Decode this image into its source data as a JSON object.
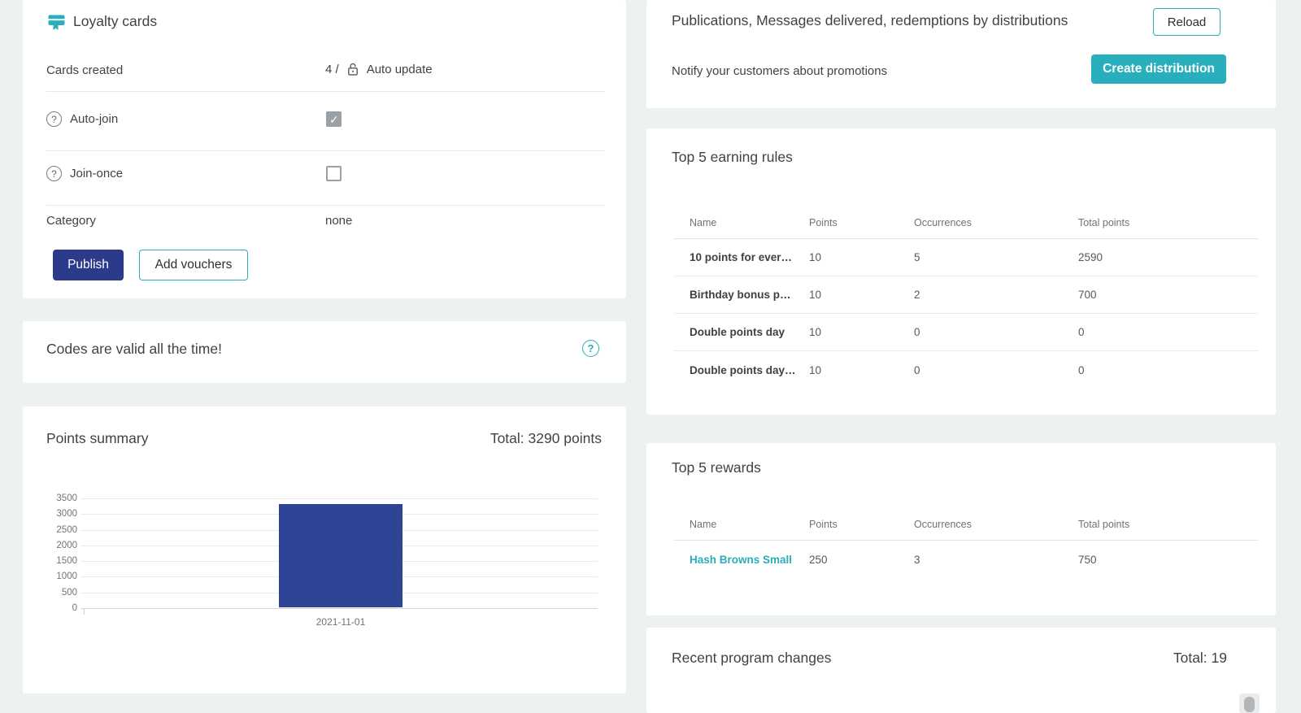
{
  "colors": {
    "background": "#edf1f2",
    "teal_accent": "#29aebb",
    "indigo_button": "#2c3a8c",
    "bar_color": "#2e4595",
    "link_teal": "#29adb9"
  },
  "icons": {
    "loyalty_card_icon": "loyalty-card-icon",
    "lock_icon": "lock-icon",
    "question_icon": "question-icon",
    "question_glyph": "?"
  },
  "loyalty_card": {
    "title": "Loyalty cards",
    "rows": {
      "cards_created": {
        "label": "Cards created",
        "value": "4 /",
        "value_suffix": "Auto update"
      },
      "auto_join": {
        "label": "Auto-join",
        "checked": true
      },
      "join_once": {
        "label": "Join-once",
        "checked": false
      },
      "category": {
        "label": "Category",
        "value": "none"
      }
    },
    "buttons": {
      "publish": "Publish",
      "add_vouchers": "Add vouchers"
    }
  },
  "codes_banner": {
    "text": "Codes are valid all the time!"
  },
  "points_summary": {
    "title": "Points summary",
    "total": "Total: 3290 points"
  },
  "chart_data": {
    "type": "bar",
    "categories": [
      "2021-11-01"
    ],
    "values": [
      3290
    ],
    "title": "Points summary",
    "xlabel": "",
    "ylabel": "",
    "ylim": [
      0,
      3500
    ],
    "yticks": [
      0,
      500,
      1000,
      1500,
      2000,
      2500,
      3000,
      3500
    ],
    "grid": true,
    "legend": false,
    "bar_color": "#2e4595"
  },
  "publications": {
    "title": "Publications, Messages delivered, redemptions by distributions",
    "reload_label": "Reload",
    "subtitle": "Notify your customers about promotions",
    "create_label": "Create distribution"
  },
  "earning_rules": {
    "title": "Top 5 earning rules",
    "columns": [
      "Name",
      "Points",
      "Occurrences",
      "Total points"
    ],
    "rows": [
      {
        "name": "10 points for ever…",
        "points": "10",
        "occurrences": "5",
        "total": "2590",
        "link": false
      },
      {
        "name": "Birthday bonus p…",
        "points": "10",
        "occurrences": "2",
        "total": "700",
        "link": false
      },
      {
        "name": "Double points day",
        "points": "10",
        "occurrences": "0",
        "total": "0",
        "link": false
      },
      {
        "name": "Double points day…",
        "points": "10",
        "occurrences": "0",
        "total": "0",
        "link": false
      }
    ]
  },
  "rewards": {
    "title": "Top 5 rewards",
    "columns": [
      "Name",
      "Points",
      "Occurrences",
      "Total points"
    ],
    "rows": [
      {
        "name": "Hash Browns Small",
        "points": "250",
        "occurrences": "3",
        "total": "750",
        "link": true
      }
    ]
  },
  "recent_changes": {
    "title": "Recent program changes",
    "total": "Total: 19"
  }
}
